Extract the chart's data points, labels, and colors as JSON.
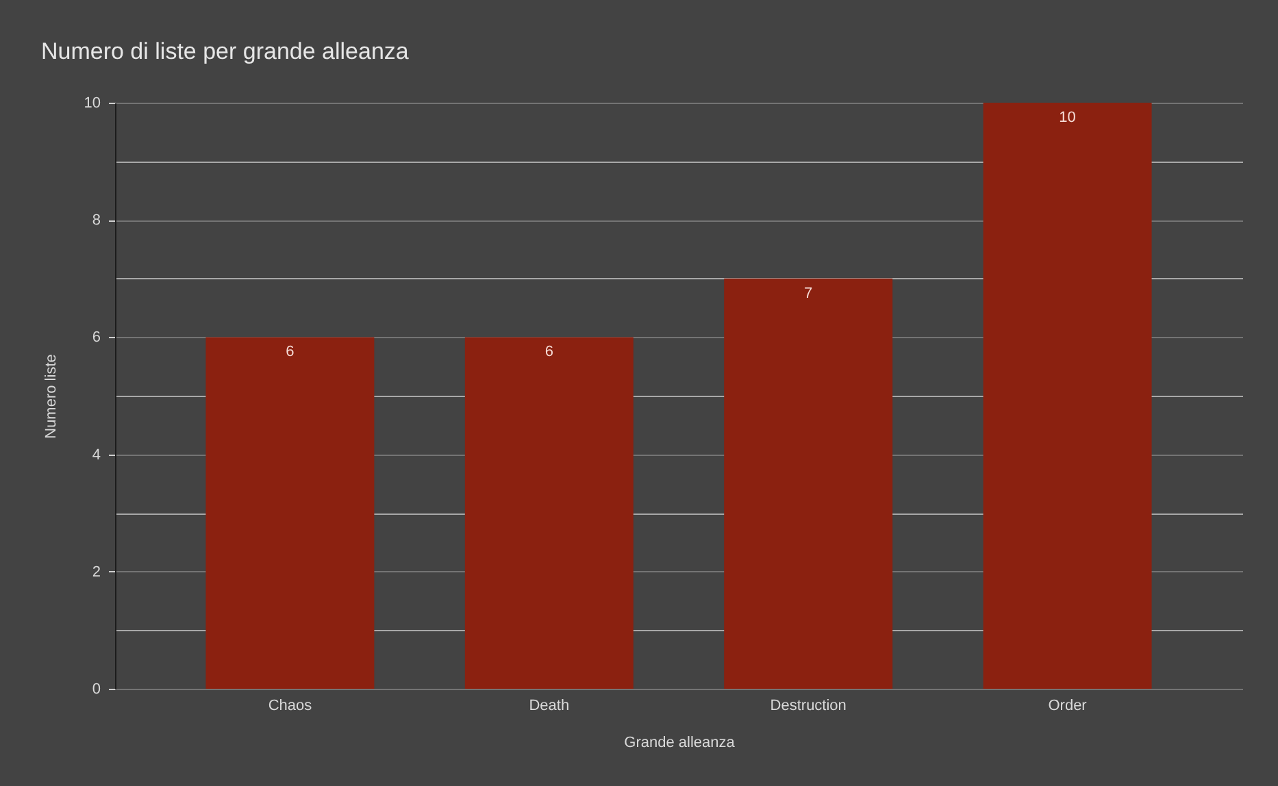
{
  "chart_data": {
    "type": "bar",
    "title": "Numero di liste per grande alleanza",
    "xlabel": "Grande alleanza",
    "ylabel": "Numero liste",
    "categories": [
      "Chaos",
      "Death",
      "Destruction",
      "Order"
    ],
    "values": [
      6,
      6,
      7,
      10
    ],
    "color": "#8b2110",
    "ylim": [
      0,
      10
    ],
    "yticks": [
      0,
      {
        "value": 1,
        "label": null
      },
      2,
      {
        "value": 3,
        "label": null
      },
      4,
      {
        "value": 5,
        "label": null
      },
      6,
      {
        "value": 7,
        "label": null
      },
      8,
      {
        "value": 9,
        "label": null
      },
      10
    ],
    "grid": "y",
    "data_labels": true
  }
}
